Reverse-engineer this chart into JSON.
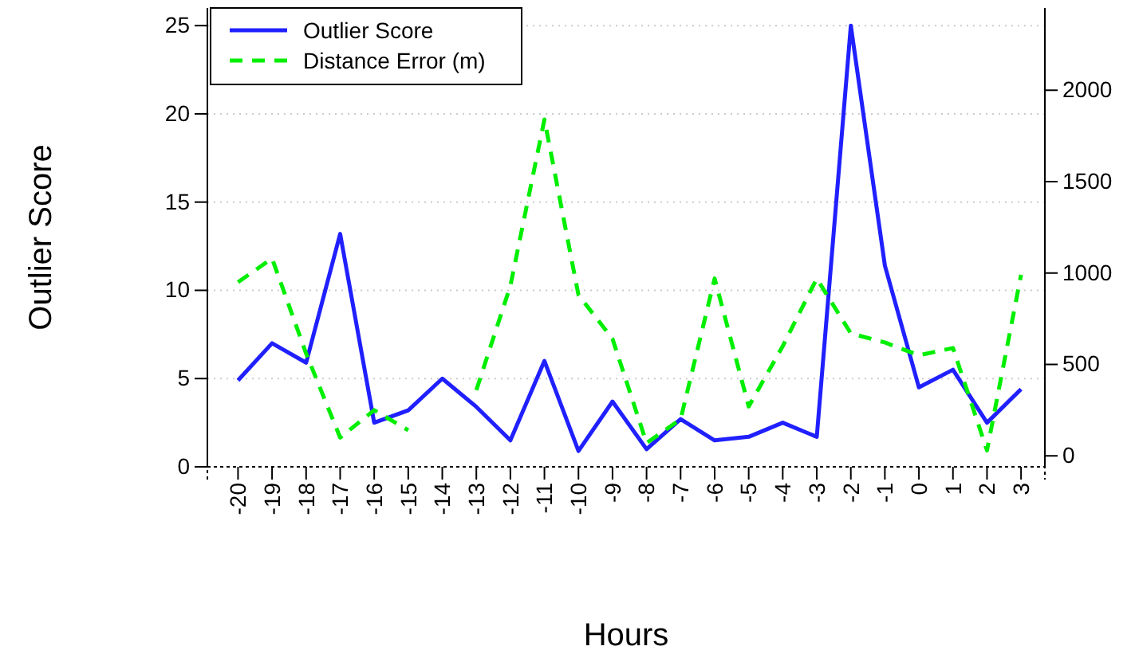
{
  "chart_data": {
    "type": "line",
    "xlabel": "Hours",
    "ylabel": "Outlier Score",
    "x": [
      -20,
      -19,
      -18,
      -17,
      -16,
      -15,
      -14,
      -13,
      -12,
      -11,
      -10,
      -9,
      -8,
      -7,
      -6,
      -5,
      -4,
      -3,
      -2,
      -1,
      0,
      1,
      2,
      3
    ],
    "xlim": [
      -20.9,
      3.7
    ],
    "xticks": [
      -20,
      -19,
      -18,
      -17,
      -16,
      -15,
      -14,
      -13,
      -12,
      -11,
      -10,
      -9,
      -8,
      -7,
      -6,
      -5,
      -4,
      -3,
      -2,
      -1,
      0,
      1,
      2,
      3
    ],
    "ylim": [
      0,
      26
    ],
    "yticks": [
      0,
      5,
      10,
      15,
      20,
      25
    ],
    "y2lim": [
      -60,
      2450
    ],
    "y2ticks": [
      0,
      500,
      1000,
      1500,
      2000
    ],
    "grid": "y",
    "legend": "top left",
    "series": [
      {
        "name": "Outlier Score",
        "color": "#2020ff",
        "line_style": "solid",
        "values": [
          4.9,
          7.0,
          5.9,
          13.2,
          2.5,
          3.2,
          5.0,
          3.4,
          1.5,
          6.0,
          0.9,
          3.7,
          1.0,
          2.7,
          1.5,
          1.7,
          2.5,
          1.7,
          25,
          11.4,
          4.5,
          5.5,
          2.5,
          4.4
        ]
      },
      {
        "name": "Distance Error (m)",
        "color": "#00ee00",
        "line_style": "dashed",
        "axis": "y2",
        "values": [
          950,
          1080,
          560,
          100,
          250,
          140,
          null,
          360,
          930,
          1840,
          880,
          640,
          70,
          200,
          970,
          270,
          600,
          970,
          670,
          620,
          550,
          590,
          30,
          990
        ]
      }
    ]
  }
}
